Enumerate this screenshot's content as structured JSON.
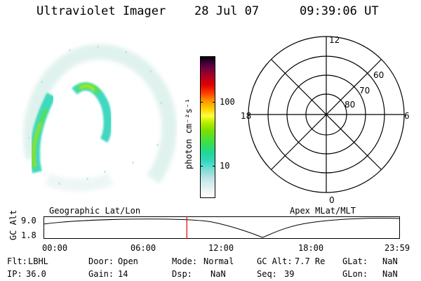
{
  "header": {
    "instrument": "Ultraviolet Imager",
    "date": "28 Jul 07",
    "time": "09:39:06 UT"
  },
  "colorbar": {
    "title": "photon cm⁻²s⁻¹",
    "ticks": [
      {
        "label": "100",
        "level": 0.68
      },
      {
        "label": "10",
        "level": 0.23
      }
    ]
  },
  "polar_plot": {
    "clock_labels": [
      "12",
      "18",
      "6",
      "0"
    ],
    "lat_labels": [
      "60",
      "70",
      "80"
    ]
  },
  "timeline": {
    "left_title": "Geographic Lat/Lon",
    "right_title": "Apex MLat/MLT",
    "axis_title": "GC Alt",
    "y_labels": [
      "9.0",
      "1.8"
    ],
    "x_labels": [
      "00:00",
      "06:00",
      "12:00",
      "18:00",
      "23:59"
    ],
    "current_marker_hours": 9.65
  },
  "info": {
    "flt_label": "Flt:",
    "flt_value": "LBHL",
    "ip_label": "IP:",
    "ip_value": "36.0",
    "door_label": "Door:",
    "door_value": "Open",
    "gain_label": "Gain:",
    "gain_value": "14",
    "mode_label": "Mode:",
    "mode_value": "Normal",
    "dsp_label": "Dsp:",
    "dsp_value": "NaN",
    "gcalt_label": "GC Alt:",
    "gcalt_value": "7.7 Re",
    "seq_label": "Seq:",
    "seq_value": "39",
    "glat_label": "GLat:",
    "glat_value": "NaN",
    "glon_label": "GLon:",
    "glon_value": "NaN"
  },
  "colors": {
    "marker": "#e00000",
    "grid": "#000000"
  }
}
